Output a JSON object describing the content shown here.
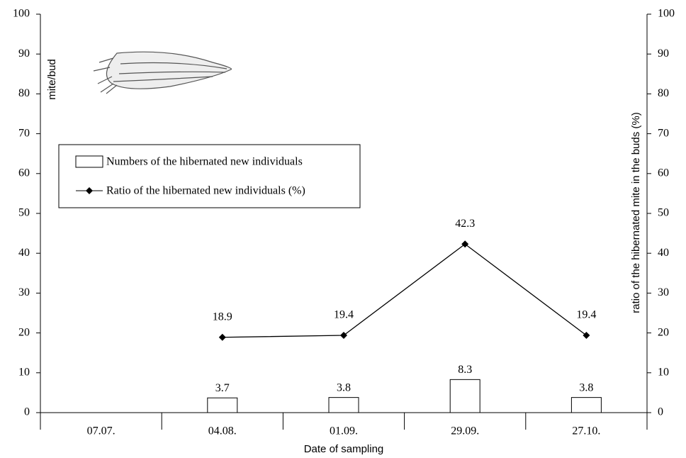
{
  "chart_data": {
    "type": "bar",
    "categories": [
      "07.07.",
      "04.08.",
      "01.09.",
      "29.09.",
      "27.10."
    ],
    "series": [
      {
        "name": "Numbers of the hibernated new individuals",
        "type": "bar",
        "axis": "y",
        "color": "#ffffff",
        "values": [
          null,
          3.7,
          3.8,
          8.3,
          3.8
        ]
      },
      {
        "name": "Ratio of the hibernated new individuals (%)",
        "type": "line",
        "axis": "y2",
        "color": "#000000",
        "values": [
          null,
          18.9,
          19.4,
          42.3,
          19.4
        ]
      }
    ],
    "xlabel": "Date of sampling",
    "ylabel": "mite/bud",
    "y2label": "ratio of the hibernated mite in the buds (%)",
    "ylim": [
      0,
      100
    ],
    "yticks": [
      0,
      10,
      20,
      30,
      40,
      50,
      60,
      70,
      80,
      90,
      100
    ],
    "y2lim": [
      0,
      100
    ],
    "y2ticks": [
      0,
      10,
      20,
      30,
      40,
      50,
      60,
      70,
      80,
      90,
      100
    ],
    "grid": false
  }
}
